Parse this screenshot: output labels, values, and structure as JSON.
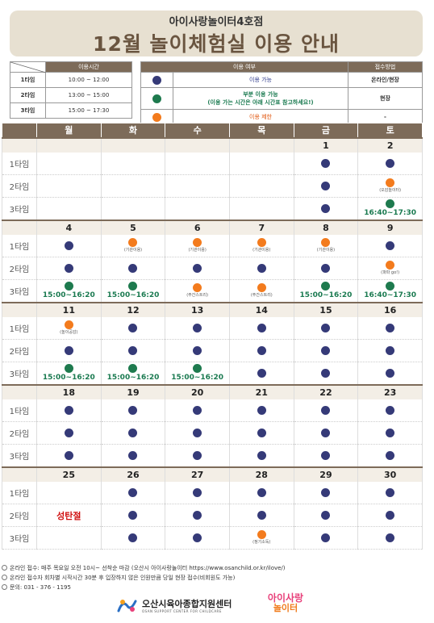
{
  "header": {
    "org": "아이사랑놀이터4호점",
    "title": "12월 놀이체험실 이용 안내"
  },
  "times_table": {
    "header": "이용시간",
    "rows": [
      {
        "label": "1타임",
        "time": "10:00 ~ 12:00"
      },
      {
        "label": "2타임",
        "time": "13:00 ~ 15:00"
      },
      {
        "label": "3타임",
        "time": "15:00 ~ 17:30"
      }
    ]
  },
  "status_table": {
    "header_status": "이용 여부",
    "header_method": "접수방법",
    "rows": [
      {
        "color": "blue",
        "text": "이용 가능",
        "method": "온라인/현장"
      },
      {
        "color": "green",
        "text": "부분 이용 가능",
        "subtext": "(이용 가는 시간은 아래 시간표 참고하세요!)",
        "method": "현장"
      },
      {
        "color": "orange",
        "text": "이용 제한",
        "method": "-"
      }
    ]
  },
  "colors": {
    "blue": "#353a78",
    "green": "#1e7a4e",
    "orange": "#f37b1d",
    "header_brown": "#7d6b59",
    "title_brown": "#6a5540"
  },
  "calendar": {
    "weekdays": [
      "월",
      "화",
      "수",
      "목",
      "금",
      "토"
    ],
    "slot_labels": [
      "1타임",
      "2타임",
      "3타임"
    ],
    "weeks": [
      {
        "dates": [
          "",
          "",
          "",
          "",
          "1",
          "2"
        ],
        "slots": [
          [
            null,
            null,
            null,
            null,
            {
              "c": "blue"
            },
            {
              "c": "blue"
            }
          ],
          [
            null,
            null,
            null,
            null,
            {
              "c": "blue"
            },
            {
              "c": "orange",
              "note": "(오감놀이터)"
            }
          ],
          [
            null,
            null,
            null,
            null,
            {
              "c": "blue"
            },
            {
              "c": "green",
              "time": "16:40~17:30"
            }
          ]
        ]
      },
      {
        "dates": [
          "4",
          "5",
          "6",
          "7",
          "8",
          "9"
        ],
        "slots": [
          [
            {
              "c": "blue"
            },
            {
              "c": "orange",
              "note": "(기관이용)"
            },
            {
              "c": "orange",
              "note": "(기관이용)"
            },
            {
              "c": "orange",
              "note": "(기관이용)"
            },
            {
              "c": "orange",
              "note": "(기관이용)"
            },
            {
              "c": "blue"
            }
          ],
          [
            {
              "c": "blue"
            },
            {
              "c": "blue"
            },
            {
              "c": "blue"
            },
            {
              "c": "blue"
            },
            {
              "c": "blue"
            },
            {
              "c": "orange",
              "note": "(파파 go!)"
            }
          ],
          [
            {
              "c": "green",
              "time": "15:00~16:20"
            },
            {
              "c": "green",
              "time": "15:00~16:20"
            },
            {
              "c": "orange",
              "note": "(주간스트리)"
            },
            {
              "c": "orange",
              "note": "(주간스트리)"
            },
            {
              "c": "green",
              "time": "15:00~16:20"
            },
            {
              "c": "green",
              "time": "16:40~17:30"
            }
          ]
        ]
      },
      {
        "dates": [
          "11",
          "12",
          "13",
          "14",
          "15",
          "16"
        ],
        "slots": [
          [
            {
              "c": "orange",
              "note": "(놀이공감)"
            },
            {
              "c": "blue"
            },
            {
              "c": "blue"
            },
            {
              "c": "blue"
            },
            {
              "c": "blue"
            },
            {
              "c": "blue"
            }
          ],
          [
            {
              "c": "blue"
            },
            {
              "c": "blue"
            },
            {
              "c": "blue"
            },
            {
              "c": "blue"
            },
            {
              "c": "blue"
            },
            {
              "c": "blue"
            }
          ],
          [
            {
              "c": "green",
              "time": "15:00~16:20"
            },
            {
              "c": "green",
              "time": "15:00~16:20"
            },
            {
              "c": "green",
              "time": "15:00~16:20"
            },
            {
              "c": "blue"
            },
            {
              "c": "blue"
            },
            {
              "c": "blue"
            }
          ]
        ]
      },
      {
        "dates": [
          "18",
          "19",
          "20",
          "21",
          "22",
          "23"
        ],
        "slots": [
          [
            {
              "c": "blue"
            },
            {
              "c": "blue"
            },
            {
              "c": "blue"
            },
            {
              "c": "blue"
            },
            {
              "c": "blue"
            },
            {
              "c": "blue"
            }
          ],
          [
            {
              "c": "blue"
            },
            {
              "c": "blue"
            },
            {
              "c": "blue"
            },
            {
              "c": "blue"
            },
            {
              "c": "blue"
            },
            {
              "c": "blue"
            }
          ],
          [
            {
              "c": "blue"
            },
            {
              "c": "blue"
            },
            {
              "c": "blue"
            },
            {
              "c": "blue"
            },
            {
              "c": "blue"
            },
            {
              "c": "blue"
            }
          ]
        ]
      },
      {
        "dates": [
          "25",
          "26",
          "27",
          "28",
          "29",
          "30"
        ],
        "red_dates": [
          0
        ],
        "slots": [
          [
            null,
            {
              "c": "blue"
            },
            {
              "c": "blue"
            },
            {
              "c": "blue"
            },
            {
              "c": "blue"
            },
            {
              "c": "blue"
            }
          ],
          [
            {
              "holiday": "성탄절"
            },
            {
              "c": "blue"
            },
            {
              "c": "blue"
            },
            {
              "c": "blue"
            },
            {
              "c": "blue"
            },
            {
              "c": "blue"
            }
          ],
          [
            null,
            {
              "c": "blue"
            },
            {
              "c": "blue"
            },
            {
              "c": "orange",
              "note": "(정기소독)"
            },
            {
              "c": "blue"
            },
            {
              "c": "blue"
            }
          ]
        ]
      }
    ]
  },
  "footer": {
    "notes": [
      "온라인 접수: 매주 목요일 오전 10시~ 선착순 마감 (오산시 아이사랑놀이터 https://www.osanchild.or.kr/ilove/)",
      "온라인 접수자 회차별 시작시간 30분 후 입장하지 않은 인원만큼 당일 현장 접수(비회원도 가능)",
      "문의: 031 - 376 - 1195"
    ],
    "logo_left_name": "오산시육아종합지원센터",
    "logo_left_eng": "OSAN SUPPORT CENTER FOR CHILDCARE",
    "logo_right_line1": "아이사랑",
    "logo_right_line2": "놀이터"
  }
}
